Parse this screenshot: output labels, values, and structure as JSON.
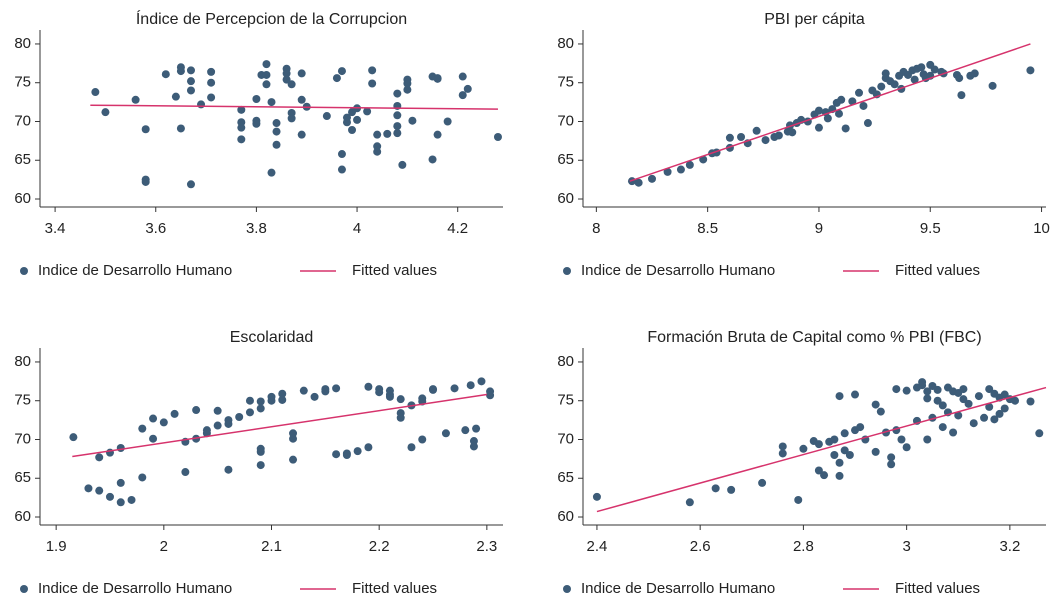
{
  "chart_data": [
    {
      "type": "scatter",
      "title": "Índice de Percepcion de la Corrupcion",
      "xlim": [
        3.37,
        4.29
      ],
      "ylim": [
        58.97,
        81.8
      ],
      "xticks": [
        3.4,
        3.6,
        3.8,
        4,
        4.2
      ],
      "yticks": [
        60,
        65,
        70,
        75,
        80
      ],
      "series": [
        {
          "name": "Indice de Desarrollo Humano",
          "mode": "markers",
          "color": "#3d5c78",
          "x": [
            3.48,
            3.5,
            3.56,
            3.58,
            3.58,
            3.58,
            3.62,
            3.64,
            3.65,
            3.65,
            3.65,
            3.67,
            3.67,
            3.67,
            3.67,
            3.69,
            3.71,
            3.71,
            3.71,
            3.77,
            3.77,
            3.77,
            3.77,
            3.8,
            3.8,
            3.8,
            3.81,
            3.82,
            3.82,
            3.82,
            3.83,
            3.84,
            3.84,
            3.84,
            3.83,
            3.86,
            3.86,
            3.86,
            3.87,
            3.87,
            3.87,
            3.89,
            3.89,
            3.89,
            3.9,
            3.94,
            3.96,
            3.97,
            3.97,
            3.97,
            3.98,
            3.98,
            3.99,
            3.99,
            4.0,
            4.0,
            4.02,
            4.03,
            4.03,
            4.04,
            4.04,
            4.04,
            4.06,
            4.08,
            4.08,
            4.08,
            4.08,
            4.08,
            4.09,
            4.1,
            4.1,
            4.1,
            4.11,
            4.15,
            4.15,
            4.16,
            4.16,
            4.16,
            4.18,
            4.21,
            4.21,
            4.22,
            4.28
          ],
          "values": [
            73.8,
            71.2,
            72.8,
            69.0,
            62.5,
            62.2,
            76.1,
            73.2,
            77.0,
            76.5,
            69.1,
            76.6,
            75.2,
            74.0,
            61.9,
            72.2,
            76.4,
            75.0,
            73.1,
            71.5,
            69.9,
            69.2,
            67.7,
            72.9,
            70.1,
            69.7,
            76.0,
            77.4,
            76.0,
            74.8,
            72.5,
            69.8,
            68.7,
            67.0,
            63.4,
            76.8,
            76.2,
            75.4,
            74.8,
            71.1,
            70.4,
            76.2,
            72.8,
            68.3,
            71.9,
            70.7,
            75.6,
            76.5,
            65.8,
            63.8,
            70.5,
            69.9,
            71.2,
            68.9,
            71.7,
            70.2,
            71.3,
            76.6,
            74.9,
            68.3,
            66.8,
            66.1,
            68.4,
            73.6,
            72.0,
            70.8,
            69.4,
            68.5,
            64.4,
            75.4,
            74.9,
            74.1,
            70.1,
            75.8,
            65.1,
            75.6,
            75.5,
            68.3,
            70.0,
            75.8,
            73.4,
            74.2,
            68.0
          ]
        },
        {
          "name": "Fitted values",
          "mode": "line",
          "color": "#d6336c",
          "x": [
            3.47,
            4.28
          ],
          "values": [
            72.1,
            71.6
          ]
        }
      ]
    },
    {
      "type": "scatter",
      "title": "PBI per cápita",
      "xlim": [
        7.94,
        10.02
      ],
      "ylim": [
        58.97,
        81.8
      ],
      "xticks": [
        8,
        8.5,
        9,
        9.5,
        10
      ],
      "yticks": [
        60,
        65,
        70,
        75,
        80
      ],
      "series": [
        {
          "name": "Indice de Desarrollo Humano",
          "mode": "markers",
          "color": "#3d5c78",
          "x": [
            8.16,
            8.19,
            8.25,
            8.32,
            8.38,
            8.42,
            8.48,
            8.52,
            8.54,
            8.6,
            8.6,
            8.65,
            8.68,
            8.72,
            8.76,
            8.8,
            8.82,
            8.86,
            8.87,
            8.88,
            8.9,
            8.92,
            8.95,
            8.98,
            9.0,
            9.0,
            9.03,
            9.04,
            9.06,
            9.08,
            9.09,
            9.1,
            9.12,
            9.15,
            9.18,
            9.2,
            9.22,
            9.24,
            9.26,
            9.28,
            9.3,
            9.3,
            9.32,
            9.34,
            9.36,
            9.37,
            9.38,
            9.4,
            9.42,
            9.43,
            9.44,
            9.46,
            9.47,
            9.48,
            9.5,
            9.5,
            9.52,
            9.55,
            9.56,
            9.62,
            9.63,
            9.64,
            9.68,
            9.7,
            9.78,
            9.95
          ],
          "values": [
            62.3,
            62.1,
            62.6,
            63.5,
            63.8,
            64.4,
            65.1,
            65.9,
            66.0,
            67.9,
            66.6,
            68.0,
            67.2,
            68.8,
            67.6,
            68.0,
            68.2,
            68.7,
            69.5,
            68.6,
            69.8,
            70.2,
            70.0,
            70.9,
            71.4,
            69.2,
            71.2,
            70.4,
            71.6,
            72.4,
            71.0,
            72.8,
            69.1,
            72.6,
            73.7,
            72.0,
            69.8,
            74.0,
            73.5,
            74.5,
            76.2,
            75.6,
            75.2,
            74.8,
            75.9,
            74.2,
            76.4,
            76.0,
            76.6,
            75.4,
            76.8,
            77.0,
            76.1,
            75.6,
            77.3,
            75.9,
            76.7,
            76.4,
            76.2,
            76.0,
            75.6,
            73.4,
            75.9,
            76.2,
            74.6,
            76.6
          ]
        },
        {
          "name": "Fitted values",
          "mode": "line",
          "color": "#d6336c",
          "x": [
            8.15,
            9.95
          ],
          "values": [
            62.3,
            80.0
          ]
        }
      ]
    },
    {
      "type": "scatter",
      "title": "Escolaridad",
      "xlim": [
        1.885,
        2.315
      ],
      "ylim": [
        58.97,
        81.8
      ],
      "xticks": [
        1.9,
        2,
        2.1,
        2.2,
        2.3
      ],
      "yticks": [
        60,
        65,
        70,
        75,
        80
      ],
      "series": [
        {
          "name": "Indice de Desarrollo Humano",
          "mode": "markers",
          "color": "#3d5c78",
          "x": [
            1.916,
            1.93,
            1.94,
            1.94,
            1.95,
            1.95,
            1.96,
            1.96,
            1.96,
            1.97,
            1.98,
            1.98,
            1.99,
            1.99,
            2.0,
            2.01,
            2.02,
            2.02,
            2.03,
            2.03,
            2.04,
            2.04,
            2.05,
            2.05,
            2.06,
            2.06,
            2.06,
            2.07,
            2.08,
            2.08,
            2.09,
            2.09,
            2.09,
            2.09,
            2.09,
            2.1,
            2.1,
            2.11,
            2.11,
            2.12,
            2.12,
            2.12,
            2.13,
            2.14,
            2.15,
            2.15,
            2.16,
            2.16,
            2.17,
            2.17,
            2.18,
            2.19,
            2.19,
            2.2,
            2.2,
            2.21,
            2.21,
            2.21,
            2.22,
            2.22,
            2.22,
            2.23,
            2.23,
            2.24,
            2.24,
            2.24,
            2.25,
            2.25,
            2.262,
            2.27,
            2.28,
            2.285,
            2.288,
            2.288,
            2.29,
            2.295,
            2.303,
            2.303
          ],
          "values": [
            70.3,
            63.7,
            67.7,
            63.4,
            68.3,
            62.6,
            68.9,
            64.4,
            61.9,
            62.2,
            65.1,
            71.4,
            72.7,
            70.1,
            72.2,
            73.3,
            69.7,
            65.8,
            73.8,
            70.1,
            70.8,
            71.2,
            73.7,
            71.8,
            72.5,
            72.0,
            66.1,
            72.9,
            75.0,
            73.5,
            74.9,
            74.0,
            68.8,
            68.4,
            66.7,
            75.5,
            75.0,
            75.9,
            75.1,
            70.8,
            70.1,
            67.4,
            76.3,
            75.5,
            76.2,
            76.5,
            76.6,
            68.1,
            68.0,
            68.2,
            68.5,
            69.0,
            76.8,
            76.5,
            76.1,
            75.8,
            75.5,
            76.3,
            73.4,
            72.8,
            75.2,
            69.0,
            74.4,
            74.9,
            75.3,
            70.0,
            76.4,
            76.5,
            70.8,
            76.6,
            71.2,
            77.0,
            69.8,
            69.1,
            71.4,
            77.5,
            76.2,
            75.7
          ]
        },
        {
          "name": "Fitted values",
          "mode": "line",
          "color": "#d6336c",
          "x": [
            1.915,
            2.3
          ],
          "values": [
            67.8,
            75.8
          ]
        }
      ]
    },
    {
      "type": "scatter",
      "title": "Formación Bruta de Capital como % PBI (FBC)",
      "xlim": [
        2.373,
        3.27
      ],
      "ylim": [
        58.97,
        81.8
      ],
      "xticks": [
        2.4,
        2.6,
        2.8,
        3,
        3.2
      ],
      "yticks": [
        60,
        65,
        70,
        75,
        80
      ],
      "series": [
        {
          "name": "Indice de Desarrollo Humano",
          "mode": "markers",
          "color": "#3d5c78",
          "x": [
            2.4,
            2.58,
            2.63,
            2.66,
            2.72,
            2.76,
            2.76,
            2.79,
            2.8,
            2.82,
            2.83,
            2.83,
            2.84,
            2.85,
            2.86,
            2.86,
            2.87,
            2.87,
            2.87,
            2.88,
            2.88,
            2.89,
            2.9,
            2.9,
            2.91,
            2.92,
            2.94,
            2.94,
            2.95,
            2.96,
            2.97,
            2.97,
            2.98,
            2.98,
            2.99,
            3.0,
            3.0,
            3.02,
            3.02,
            3.03,
            3.03,
            3.04,
            3.04,
            3.04,
            3.05,
            3.05,
            3.06,
            3.06,
            3.07,
            3.07,
            3.08,
            3.08,
            3.09,
            3.09,
            3.1,
            3.1,
            3.11,
            3.11,
            3.12,
            3.13,
            3.14,
            3.15,
            3.16,
            3.16,
            3.17,
            3.17,
            3.18,
            3.18,
            3.19,
            3.19,
            3.2,
            3.21,
            3.24,
            3.257
          ],
          "values": [
            62.6,
            61.9,
            63.7,
            63.5,
            64.4,
            69.1,
            68.2,
            62.2,
            68.8,
            69.8,
            69.4,
            66.0,
            65.4,
            69.7,
            70.0,
            68.0,
            75.6,
            67.0,
            65.3,
            70.8,
            68.6,
            68.0,
            75.8,
            71.2,
            71.6,
            70.0,
            74.5,
            68.4,
            73.6,
            70.9,
            67.7,
            66.8,
            76.5,
            71.2,
            70.0,
            76.3,
            69.0,
            76.7,
            72.4,
            77.4,
            77.0,
            76.2,
            75.3,
            70.0,
            76.9,
            72.8,
            76.4,
            75.0,
            74.4,
            71.6,
            76.7,
            73.5,
            76.2,
            70.9,
            76.0,
            73.1,
            76.5,
            75.2,
            74.6,
            72.1,
            75.6,
            72.8,
            76.5,
            74.2,
            75.9,
            72.6,
            75.4,
            73.3,
            75.8,
            74.0,
            75.2,
            75.0,
            74.9,
            70.8
          ]
        },
        {
          "name": "Fitted values",
          "mode": "line",
          "color": "#d6336c",
          "x": [
            2.4,
            3.27
          ],
          "values": [
            60.7,
            76.7
          ]
        }
      ]
    }
  ]
}
